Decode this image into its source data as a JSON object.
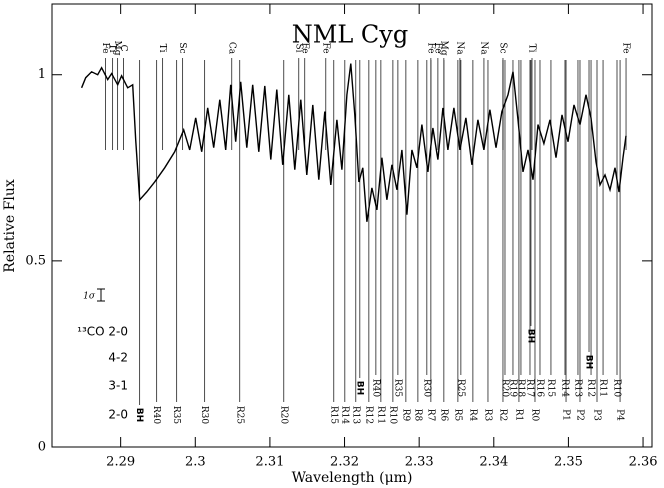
{
  "chart_data": {
    "type": "line",
    "title": "NML Cyg",
    "x_label": "Wavelength (μm)",
    "y_label": "Relative Flux",
    "annotation": "1σ",
    "xlim": [
      2.2808,
      2.3612
    ],
    "ylim": [
      0,
      1.19
    ],
    "xticks": [
      2.29,
      2.3,
      2.31,
      2.32,
      2.33,
      2.34,
      2.35,
      2.36
    ],
    "yticks": [
      0,
      0.5,
      1
    ],
    "series": [
      {
        "name": null,
        "color": "#000000",
        "x": [
          2.28477,
          2.28531,
          2.28611,
          2.28692,
          2.28745,
          2.28826,
          2.28879,
          2.2896,
          2.29013,
          2.29094,
          2.29161,
          2.29201,
          2.29255,
          2.29349,
          2.29456,
          2.2959,
          2.29724,
          2.29845,
          2.29925,
          2.30006,
          2.30086,
          2.30167,
          2.30247,
          2.30328,
          2.30408,
          2.30475,
          2.30542,
          2.30609,
          2.3069,
          2.3077,
          2.30851,
          2.30931,
          2.31012,
          2.31092,
          2.31172,
          2.31253,
          2.31333,
          2.31414,
          2.31494,
          2.31575,
          2.31655,
          2.31736,
          2.31816,
          2.31897,
          2.31964,
          2.32031,
          2.32084,
          2.32138,
          2.32192,
          2.32245,
          2.32299,
          2.32366,
          2.32433,
          2.325,
          2.32567,
          2.32634,
          2.32701,
          2.32768,
          2.32835,
          2.32902,
          2.32969,
          2.33036,
          2.33117,
          2.33184,
          2.33251,
          2.33318,
          2.33385,
          2.33466,
          2.33546,
          2.33626,
          2.33707,
          2.33787,
          2.33868,
          2.33948,
          2.34029,
          2.34109,
          2.3419,
          2.34257,
          2.34324,
          2.34391,
          2.34458,
          2.34525,
          2.34592,
          2.34672,
          2.34753,
          2.34833,
          2.34914,
          2.34994,
          2.35075,
          2.35155,
          2.35236,
          2.35303,
          2.3537,
          2.35423,
          2.3549,
          2.35557,
          2.35624,
          2.35678,
          2.35732,
          2.35772
        ],
        "values": [
          0.965,
          0.992,
          1.008,
          1.0,
          1.019,
          0.987,
          1.003,
          0.973,
          0.997,
          0.965,
          0.973,
          0.825,
          0.664,
          0.685,
          0.712,
          0.75,
          0.793,
          0.852,
          0.798,
          0.884,
          0.793,
          0.911,
          0.804,
          0.933,
          0.798,
          0.973,
          0.82,
          0.981,
          0.804,
          0.973,
          0.793,
          0.97,
          0.772,
          0.96,
          0.758,
          0.946,
          0.745,
          0.933,
          0.731,
          0.919,
          0.718,
          0.901,
          0.704,
          0.879,
          0.745,
          0.946,
          1.03,
          0.892,
          0.712,
          0.75,
          0.605,
          0.696,
          0.637,
          0.777,
          0.664,
          0.758,
          0.691,
          0.798,
          0.624,
          0.798,
          0.75,
          0.866,
          0.739,
          0.857,
          0.772,
          0.911,
          0.798,
          0.911,
          0.798,
          0.884,
          0.758,
          0.879,
          0.798,
          0.906,
          0.804,
          0.901,
          0.946,
          1.008,
          0.879,
          0.739,
          0.798,
          0.718,
          0.866,
          0.815,
          0.879,
          0.777,
          0.892,
          0.82,
          0.919,
          0.866,
          0.946,
          0.884,
          0.766,
          0.704,
          0.731,
          0.691,
          0.75,
          0.685,
          0.777,
          0.836
        ]
      }
    ],
    "line_rows": [
      {
        "name": "2-0",
        "lines": [
          {
            "label": "BH",
            "x": 2.29255
          },
          {
            "label": "R40",
            "x": 2.29483
          },
          {
            "label": "R35",
            "x": 2.29751
          },
          {
            "label": "R30",
            "x": 2.30126
          },
          {
            "label": "R25",
            "x": 2.30596
          },
          {
            "label": "R20",
            "x": 2.31186
          },
          {
            "label": "R15",
            "x": 2.31856
          },
          {
            "label": "R14",
            "x": 2.32004
          },
          {
            "label": "R13",
            "x": 2.32151
          },
          {
            "label": "R12",
            "x": 2.32326
          },
          {
            "label": "R11",
            "x": 2.32487
          },
          {
            "label": "R10",
            "x": 2.32648
          },
          {
            "label": "R9",
            "x": 2.32822
          },
          {
            "label": "R8",
            "x": 2.32983
          },
          {
            "label": "R7",
            "x": 2.33157
          },
          {
            "label": "R6",
            "x": 2.33331
          },
          {
            "label": "R5",
            "x": 2.33519
          },
          {
            "label": "R4",
            "x": 2.3372
          },
          {
            "label": "R3",
            "x": 2.33922
          },
          {
            "label": "R2",
            "x": 2.34123
          },
          {
            "label": "R1",
            "x": 2.34337
          },
          {
            "label": "R0",
            "x": 2.34552
          },
          {
            "label": "P1",
            "x": 2.34968
          },
          {
            "label": "P2",
            "x": 2.35155
          },
          {
            "label": "P3",
            "x": 2.35383
          },
          {
            "label": "P4",
            "x": 2.35692
          }
        ]
      },
      {
        "name": "3-1",
        "lines": [
          {
            "label": "BH",
            "x": 2.32205
          },
          {
            "label": "R40",
            "x": 2.3242
          },
          {
            "label": "R35",
            "x": 2.32715
          },
          {
            "label": "R30",
            "x": 2.33103
          },
          {
            "label": "R25",
            "x": 2.33559
          },
          {
            "label": "R20",
            "x": 2.3415
          },
          {
            "label": "R19",
            "x": 2.34257
          },
          {
            "label": "R18",
            "x": 2.34364
          },
          {
            "label": "R17",
            "x": 2.34485
          },
          {
            "label": "R16",
            "x": 2.34619
          },
          {
            "label": "R15",
            "x": 2.34766
          },
          {
            "label": "R14",
            "x": 2.34954
          },
          {
            "label": "R13",
            "x": 2.35128
          },
          {
            "label": "R12",
            "x": 2.35303
          },
          {
            "label": "R11",
            "x": 2.35464
          },
          {
            "label": "R10",
            "x": 2.35651
          }
        ]
      },
      {
        "name": "4-2",
        "lines": [
          {
            "label": "BH",
            "x": 2.34498
          }
        ]
      },
      {
        "name": "¹³CO 2-0",
        "lines": [
          {
            "label": "BH",
            "x": 2.35276
          }
        ]
      }
    ],
    "atomic_lines": [
      {
        "label": "Fe",
        "x": 2.28799
      },
      {
        "label": "Ti",
        "x": 2.28893
      },
      {
        "label": "Mg",
        "x": 2.2896
      },
      {
        "label": "C",
        "x": 2.2904
      },
      {
        "label": "Ti",
        "x": 2.29563
      },
      {
        "label": "Sc",
        "x": 2.29831
      },
      {
        "label": "Ca",
        "x": 2.30489
      },
      {
        "label": "Si",
        "x": 2.31387
      },
      {
        "label": "Fe",
        "x": 2.31467
      },
      {
        "label": "Fe",
        "x": 2.31749
      },
      {
        "label": "Fe",
        "x": 2.33157
      },
      {
        "label": "Fe",
        "x": 2.33251
      },
      {
        "label": "Mg",
        "x": 2.33331
      },
      {
        "label": "Na",
        "x": 2.33546
      },
      {
        "label": "Na",
        "x": 2.33868
      },
      {
        "label": "Sc",
        "x": 2.34123
      },
      {
        "label": "Ti",
        "x": 2.34512
      },
      {
        "label": "Fe",
        "x": 2.35772
      }
    ]
  }
}
